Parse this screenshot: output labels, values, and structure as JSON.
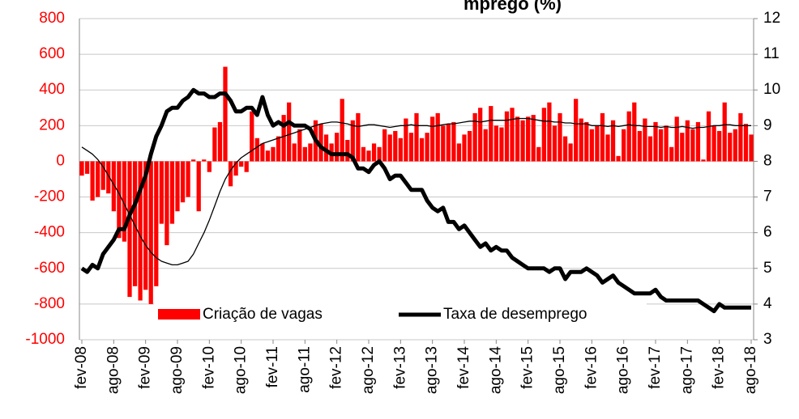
{
  "chart_data": {
    "type": "bar_line",
    "title": "mprego (%)",
    "categories": [
      "fev-08",
      null,
      null,
      null,
      null,
      null,
      "ago-08",
      null,
      null,
      null,
      null,
      null,
      "fev-09",
      null,
      null,
      null,
      null,
      null,
      "ago-09",
      null,
      null,
      null,
      null,
      null,
      "fev-10",
      null,
      null,
      null,
      null,
      null,
      "ago-10",
      null,
      null,
      null,
      null,
      null,
      "fev-11",
      null,
      null,
      null,
      null,
      null,
      "ago-11",
      null,
      null,
      null,
      null,
      null,
      "fev-12",
      null,
      null,
      null,
      null,
      null,
      "ago-12",
      null,
      null,
      null,
      null,
      null,
      "fev-13",
      null,
      null,
      null,
      null,
      null,
      "ago-13",
      null,
      null,
      null,
      null,
      null,
      "fev-14",
      null,
      null,
      null,
      null,
      null,
      "ago-14",
      null,
      null,
      null,
      null,
      null,
      "fev-15",
      null,
      null,
      null,
      null,
      null,
      "ago-15",
      null,
      null,
      null,
      null,
      null,
      "fev-16",
      null,
      null,
      null,
      null,
      null,
      "ago-16",
      null,
      null,
      null,
      null,
      null,
      "fev-17",
      null,
      null,
      null,
      null,
      null,
      "ago-17",
      null,
      null,
      null,
      null,
      null,
      "fev-18",
      null,
      null,
      null,
      null,
      null,
      "ago-18"
    ],
    "series": [
      {
        "name": "Criação de vagas",
        "type": "bar",
        "color": "#ff0000",
        "axis": "y",
        "values": [
          -80,
          -70,
          -220,
          -200,
          -160,
          -180,
          -280,
          -430,
          -450,
          -760,
          -700,
          -780,
          -720,
          -800,
          -700,
          -350,
          -470,
          -350,
          -280,
          -230,
          -200,
          10,
          -280,
          10,
          -60,
          190,
          220,
          530,
          -140,
          -80,
          -30,
          -60,
          280,
          130,
          100,
          60,
          80,
          140,
          260,
          330,
          100,
          180,
          80,
          100,
          230,
          210,
          150,
          100,
          160,
          350,
          120,
          230,
          270,
          80,
          60,
          100,
          80,
          180,
          150,
          170,
          130,
          240,
          160,
          270,
          130,
          160,
          250,
          270,
          200,
          210,
          220,
          100,
          150,
          170,
          270,
          300,
          180,
          310,
          200,
          190,
          280,
          300,
          250,
          230,
          250,
          260,
          80,
          300,
          330,
          200,
          270,
          140,
          100,
          350,
          240,
          220,
          180,
          200,
          270,
          150,
          230,
          30,
          180,
          280,
          330,
          170,
          240,
          140,
          220,
          180,
          200,
          80,
          250,
          160,
          230,
          180,
          220,
          10,
          280,
          200,
          170,
          330,
          160,
          180,
          270,
          210,
          150
        ]
      },
      {
        "name": "Taxa de desemprego",
        "type": "line",
        "color": "#000000",
        "axis": "y2",
        "values": [
          5,
          4.9,
          5.1,
          5.0,
          5.4,
          5.6,
          5.8,
          6.1,
          6.1,
          6.5,
          6.8,
          7.2,
          7.6,
          8.2,
          8.7,
          9.0,
          9.4,
          9.5,
          9.5,
          9.7,
          9.8,
          10.0,
          9.9,
          9.9,
          9.8,
          9.8,
          9.9,
          9.9,
          9.7,
          9.4,
          9.4,
          9.5,
          9.5,
          9.3,
          9.8,
          9.3,
          9.0,
          9.1,
          9.0,
          9.1,
          9.0,
          9.0,
          9.0,
          8.9,
          8.6,
          8.4,
          8.3,
          8.2,
          8.2,
          8.2,
          8.2,
          8.1,
          7.8,
          7.8,
          7.7,
          7.9,
          8.0,
          7.8,
          7.5,
          7.6,
          7.6,
          7.4,
          7.2,
          7.2,
          7.2,
          6.9,
          6.7,
          6.6,
          6.7,
          6.3,
          6.3,
          6.1,
          6.2,
          6.0,
          5.8,
          5.6,
          5.7,
          5.5,
          5.6,
          5.5,
          5.5,
          5.3,
          5.2,
          5.1,
          5.0,
          5.0,
          5.0,
          5.0,
          4.9,
          5.0,
          5.0,
          4.7,
          4.9,
          4.9,
          4.9,
          5.0,
          4.9,
          4.8,
          4.6,
          4.7,
          4.8,
          4.6,
          4.5,
          4.4,
          4.3,
          4.3,
          4.3,
          4.3,
          4.4,
          4.2,
          4.1,
          4.1,
          4.1,
          4.1,
          4.1,
          4.1,
          4.1,
          4.0,
          3.9,
          3.8,
          4.0,
          3.9,
          3.9,
          3.9,
          3.9,
          3.9,
          3.9
        ]
      },
      {
        "type": "line",
        "color": "#000000",
        "axis": "y",
        "values": [
          80,
          60,
          40,
          10,
          -30,
          -80,
          -130,
          -180,
          -240,
          -300,
          -360,
          -420,
          -470,
          -510,
          -540,
          -560,
          -570,
          -580,
          -580,
          -570,
          -560,
          -520,
          -460,
          -400,
          -330,
          -250,
          -170,
          -100,
          -50,
          -10,
          20,
          40,
          60,
          80,
          100,
          110,
          120,
          130,
          140,
          150,
          160,
          170,
          180,
          190,
          200,
          210,
          215,
          220,
          220,
          215,
          210,
          200,
          195,
          200,
          205,
          205,
          200,
          195,
          190,
          195,
          200,
          200,
          205,
          200,
          200,
          200,
          195,
          200,
          205,
          210,
          210,
          215,
          220,
          225,
          225,
          220,
          225,
          230,
          230,
          230,
          230,
          235,
          240,
          240,
          240,
          235,
          230,
          225,
          225,
          220,
          220,
          215,
          215,
          210,
          210,
          210,
          200,
          200,
          200,
          195,
          200,
          195,
          200,
          205,
          200,
          200,
          195,
          195,
          195,
          190,
          195,
          190,
          190,
          195,
          190,
          185,
          190,
          190,
          195,
          200,
          200,
          205,
          205,
          200,
          200,
          200,
          200
        ]
      }
    ],
    "ylim": [
      -1000,
      800
    ],
    "yticks": [
      -1000,
      -800,
      -600,
      -400,
      -200,
      0,
      200,
      400,
      600,
      800
    ],
    "y2lim": [
      3,
      12
    ],
    "y2ticks": [
      3,
      4,
      5,
      6,
      7,
      8,
      9,
      10,
      11,
      12
    ],
    "grid": true,
    "ytick_color": "#ff0000"
  }
}
